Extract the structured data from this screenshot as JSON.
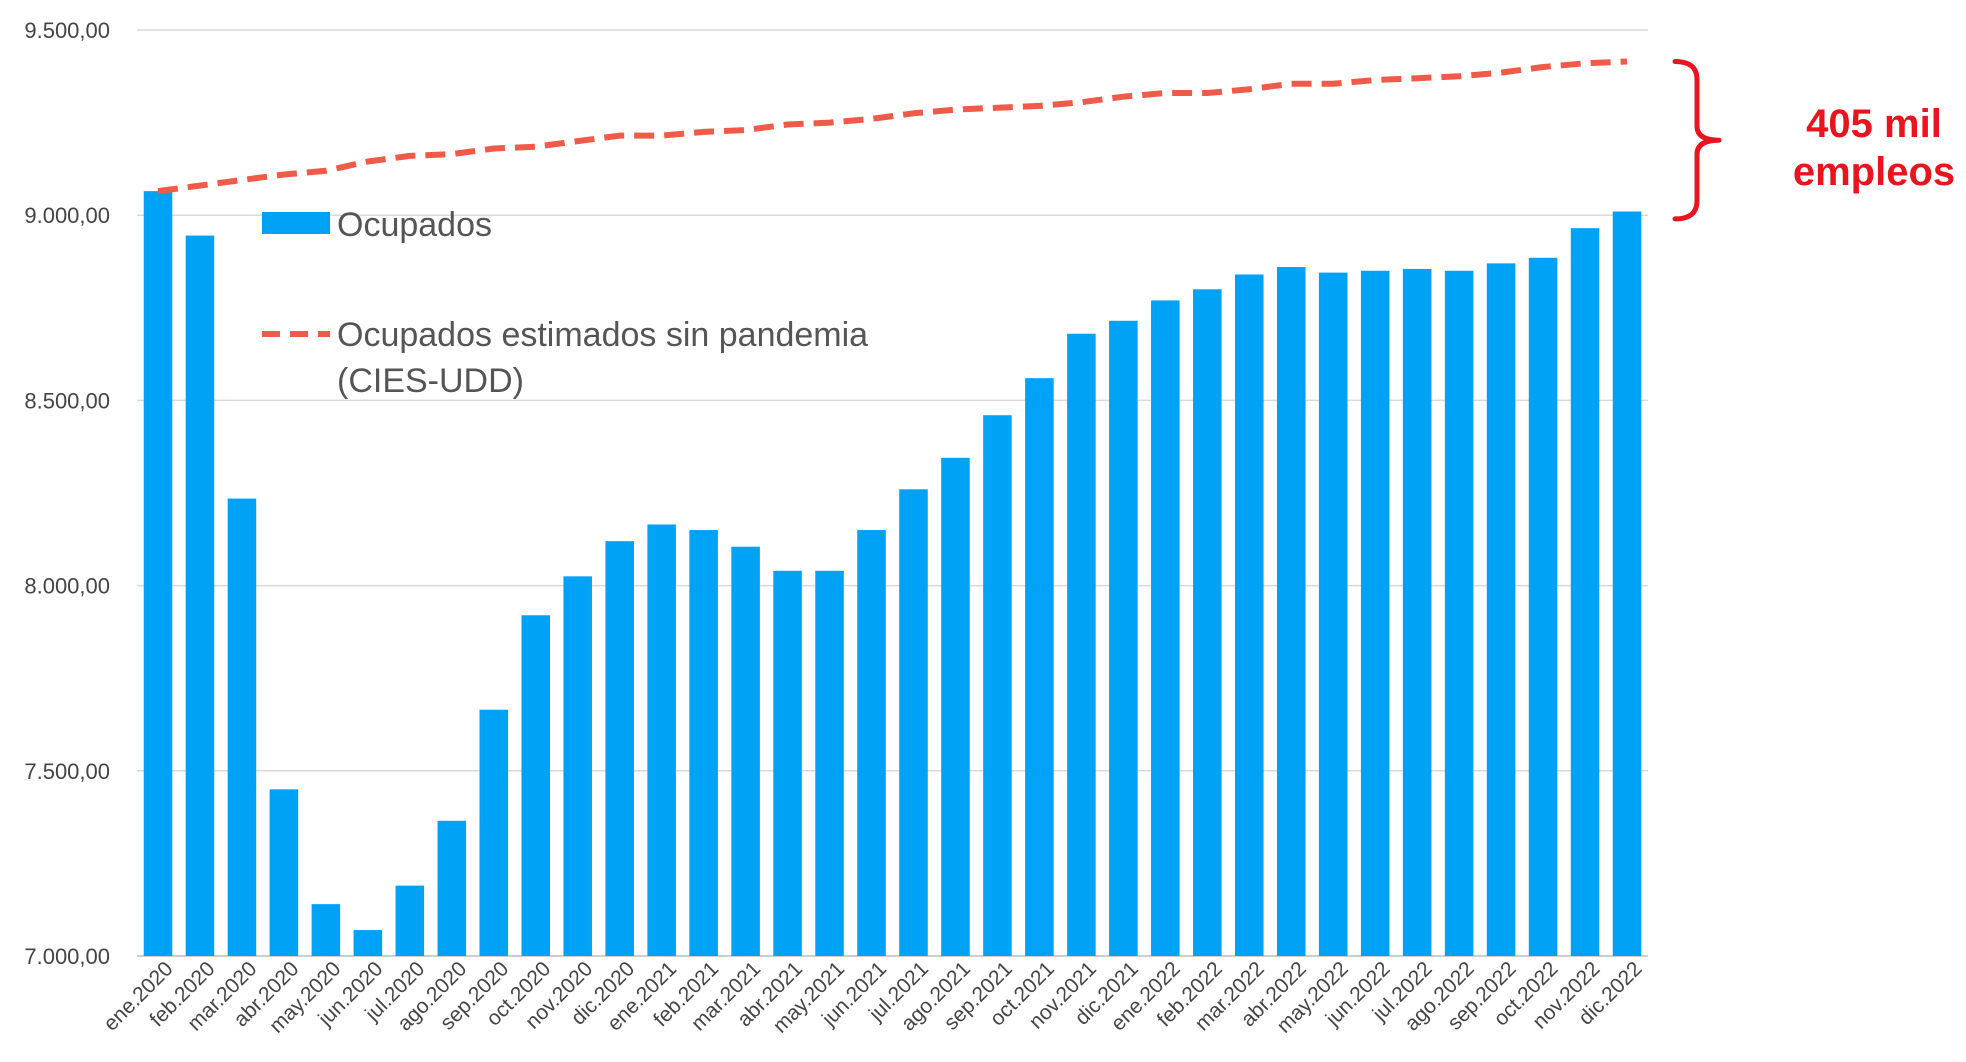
{
  "chart_data": {
    "type": "bar",
    "categories": [
      "ene.2020",
      "feb.2020",
      "mar.2020",
      "abr.2020",
      "may.2020",
      "jun.2020",
      "jul.2020",
      "ago.2020",
      "sep.2020",
      "oct.2020",
      "nov.2020",
      "dic.2020",
      "ene.2021",
      "feb.2021",
      "mar.2021",
      "abr.2021",
      "may.2021",
      "jun.2021",
      "jul.2021",
      "ago.2021",
      "sep.2021",
      "oct.2021",
      "nov.2021",
      "dic.2021",
      "ene.2022",
      "feb.2022",
      "mar.2022",
      "abr.2022",
      "may.2022",
      "jun.2022",
      "jul.2022",
      "ago.2022",
      "sep.2022",
      "oct.2022",
      "nov.2022",
      "dic.2022"
    ],
    "series": [
      {
        "name": "Ocupados",
        "type": "bar",
        "color": "#00a2f5",
        "values": [
          9065,
          8945,
          8235,
          7450,
          7140,
          7070,
          7190,
          7365,
          7665,
          7920,
          8025,
          8120,
          8165,
          8150,
          8105,
          8040,
          8040,
          8150,
          8260,
          8345,
          8460,
          8560,
          8680,
          8715,
          8770,
          8800,
          8840,
          8860,
          8845,
          8850,
          8855,
          8850,
          8870,
          8885,
          8965,
          9010
        ]
      },
      {
        "name": "Ocupados estimados sin pandemia",
        "name_line2": "(CIES-UDD)",
        "type": "line",
        "style": "dashed",
        "color": "#f05a48",
        "values": [
          9065,
          9080,
          9095,
          9110,
          9120,
          9145,
          9160,
          9165,
          9180,
          9185,
          9200,
          9215,
          9215,
          9225,
          9230,
          9245,
          9250,
          9260,
          9275,
          9285,
          9290,
          9295,
          9305,
          9320,
          9330,
          9330,
          9340,
          9355,
          9355,
          9365,
          9370,
          9375,
          9385,
          9400,
          9410,
          9415
        ]
      }
    ],
    "ylim": [
      7000,
      9500
    ],
    "yticks": [
      {
        "value": 7000,
        "label": "7.000,00"
      },
      {
        "value": 7500,
        "label": "7.500,00"
      },
      {
        "value": 8000,
        "label": "8.000,00"
      },
      {
        "value": 8500,
        "label": "8.500,00"
      },
      {
        "value": 9000,
        "label": "9.000,00"
      },
      {
        "value": 9500,
        "label": "9.500,00"
      }
    ],
    "grid": true,
    "legend_position": "top-left",
    "annotation": {
      "line1": "405 mil",
      "line2": "empleos",
      "color": "#e8141e",
      "bracket_from": 8990,
      "bracket_to": 9415
    },
    "title": "",
    "xlabel": "",
    "ylabel": ""
  }
}
